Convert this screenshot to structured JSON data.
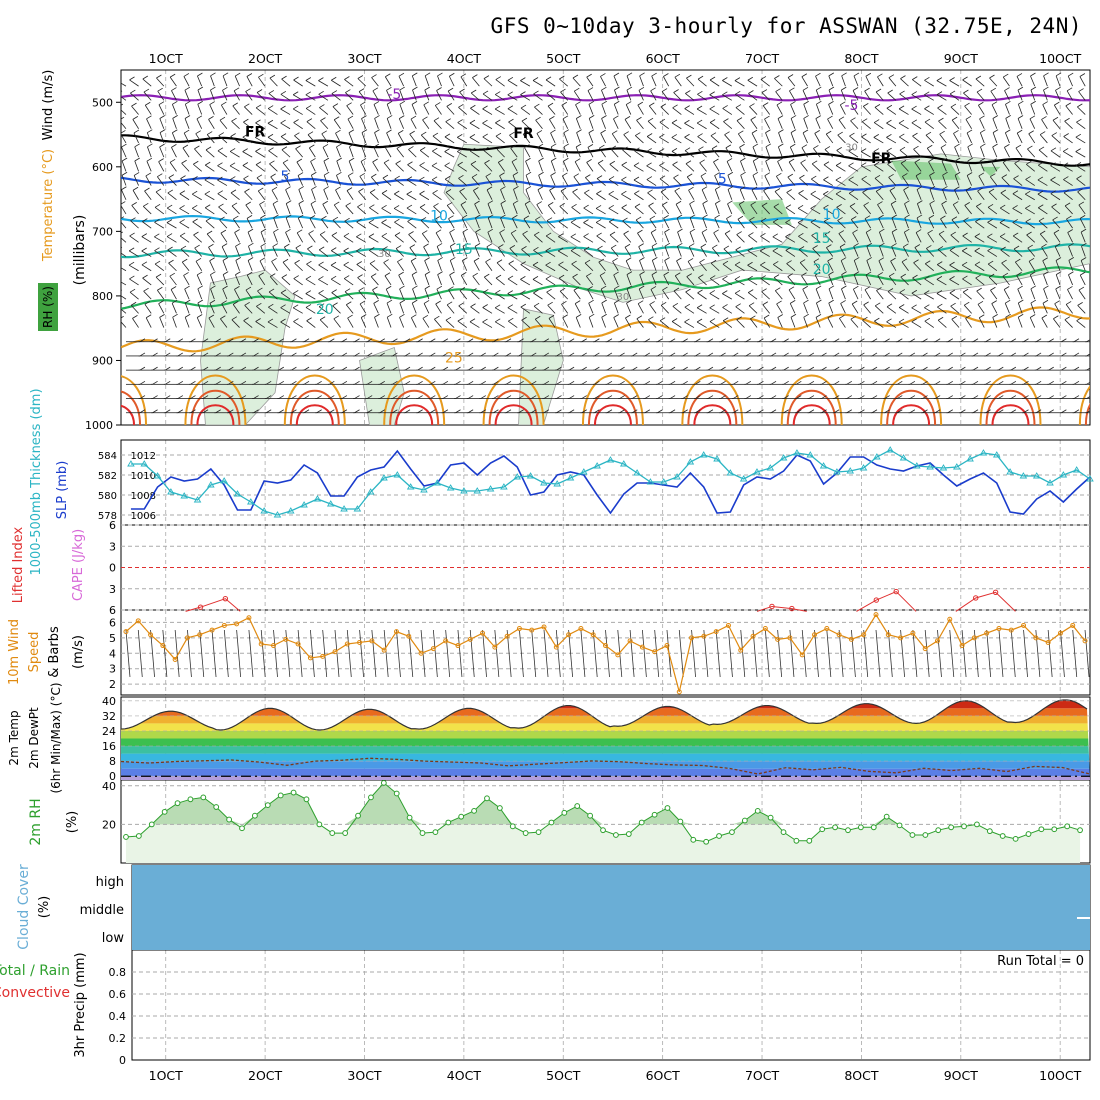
{
  "title": "GFS 0~10day 3-hourly for ASSWAN (32.75E, 24N)",
  "colors": {
    "purple": "#8a1fb4",
    "blue": "#1a52d6",
    "cyan": "#19a6e0",
    "teal": "#1fb3a6",
    "green": "#21b05a",
    "orange": "#e69a1e",
    "red": "#e02a2a",
    "magenta": "#d61e9a",
    "rhfill": "#dcefdc",
    "rhline": "#2ea02e",
    "cloud": "#6aaed6",
    "slp": "#1a3ccc",
    "thick": "#2bb5c4",
    "wind": "#e08a10",
    "cape": "#d86ad8",
    "li": "#e03030"
  },
  "chart_data": [
    {
      "type": "area",
      "panel": "upper-air",
      "ylabel": "(millibars)",
      "left_labels": [
        {
          "text": "Wind (m/s)",
          "color": "#000000"
        },
        {
          "text": "Temperature (°C)",
          "color": "#e69a1e"
        },
        {
          "text": "RH (%)",
          "color": "#2ea02e"
        }
      ],
      "y_ticks": [
        500,
        600,
        700,
        800,
        900,
        1000
      ],
      "ylim": [
        450,
        1000
      ],
      "x_ticks": [
        "1OCT",
        "2OCT",
        "3OCT",
        "4OCT",
        "5OCT",
        "6OCT",
        "7OCT",
        "8OCT",
        "9OCT",
        "10OCT"
      ],
      "x_day_range": [
        0.55,
        10.3
      ],
      "isotherm_labels": [
        {
          "text": "-5",
          "t": 3.3,
          "p": 495
        },
        {
          "text": "-5",
          "t": 7.9,
          "p": 512
        },
        {
          "text": "FR",
          "t": 1.9,
          "p": 553
        },
        {
          "text": "FR",
          "t": 4.6,
          "p": 555
        },
        {
          "text": "FR",
          "t": 8.2,
          "p": 594
        },
        {
          "text": "5",
          "t": 2.2,
          "p": 622
        },
        {
          "text": "5",
          "t": 6.6,
          "p": 626
        },
        {
          "text": "10",
          "t": 3.75,
          "p": 683
        },
        {
          "text": "10",
          "t": 7.7,
          "p": 681
        },
        {
          "text": "15",
          "t": 4.0,
          "p": 735
        },
        {
          "text": "15",
          "t": 7.6,
          "p": 718
        },
        {
          "text": "20",
          "t": 2.6,
          "p": 828
        },
        {
          "text": "20",
          "t": 7.6,
          "p": 766
        },
        {
          "text": "25",
          "t": 3.9,
          "p": 903
        },
        {
          "text": "30",
          "t": 3.2,
          "p": 740
        },
        {
          "text": "30",
          "t": 7.9,
          "p": 575
        },
        {
          "text": "30",
          "t": 5.6,
          "p": 806
        }
      ]
    },
    {
      "type": "line",
      "panel": "slp-thickness",
      "left_labels": [
        {
          "text": "1000-500mb Thickness (dm)",
          "color": "#2bb5c4"
        },
        {
          "text": "SLP (mb)",
          "color": "#1a3ccc"
        }
      ],
      "y_ticks_left": [
        578,
        580,
        582,
        584
      ],
      "y_ticks_right": [
        1006,
        1008,
        1010,
        1012
      ],
      "series": [
        {
          "name": "SLP (mb)",
          "values": [
            1006.6,
            1006.6,
            1008.8,
            1009.8,
            1009.4,
            1009.6,
            1010.6,
            1009.0,
            1006.5,
            1006.5,
            1009.4,
            1009.2,
            1009.5,
            1011.0,
            1010.2,
            1007.9,
            1007.9,
            1009.8,
            1010.5,
            1010.8,
            1012.4,
            1010.6,
            1008.9,
            1009.2,
            1011.0,
            1011.2,
            1010.0,
            1011.2,
            1011.9,
            1010.8,
            1008.0,
            1008.3,
            1010.0,
            1010.3,
            1010.0,
            1008.0,
            1006.2,
            1008.1,
            1009.2,
            1009.2,
            1009.0,
            1008.8,
            1010.2,
            1008.8,
            1006.2,
            1006.3,
            1009.0,
            1009.8,
            1009.6,
            1010.4,
            1012.0,
            1011.4,
            1009.1,
            1010.2,
            1011.8,
            1011.8,
            1011.0,
            1010.6,
            1010.4,
            1010.9,
            1011.2,
            1010.0,
            1008.9,
            1009.6,
            1010.2,
            1009.2,
            1006.3,
            1006.1,
            1007.6,
            1008.4,
            1007.3,
            1008.6,
            1009.8
          ]
        },
        {
          "name": "Thickness (dm)",
          "values": [
            583.1,
            583.1,
            581.9,
            580.3,
            579.9,
            579.5,
            581.0,
            581.4,
            580.1,
            579.3,
            578.4,
            578.0,
            578.4,
            579.0,
            579.6,
            579.1,
            578.6,
            578.6,
            580.3,
            581.7,
            582.0,
            580.8,
            580.5,
            581.2,
            580.7,
            580.4,
            580.4,
            580.6,
            580.8,
            581.8,
            581.9,
            581.2,
            581.1,
            581.7,
            582.3,
            582.9,
            583.5,
            583.1,
            582.2,
            581.3,
            581.3,
            581.8,
            583.3,
            584.0,
            583.6,
            582.2,
            581.6,
            582.3,
            582.7,
            583.7,
            584.2,
            584.0,
            582.9,
            582.3,
            582.4,
            582.7,
            583.8,
            584.5,
            583.7,
            582.9,
            582.8,
            582.7,
            582.8,
            583.6,
            584.2,
            584.0,
            582.3,
            581.9,
            581.9,
            581.2,
            582.0,
            582.5,
            581.6
          ]
        }
      ]
    },
    {
      "type": "line",
      "panel": "instability",
      "left_labels": [
        {
          "text": "Lifted Index",
          "color": "#e03030"
        },
        {
          "text": "CAPE (J/kg)",
          "color": "#d86ad8"
        }
      ],
      "y_ticks": [
        -6,
        -3,
        0,
        3,
        6
      ],
      "ylim": [
        -6,
        6
      ],
      "y_tick_labels": [
        "6",
        "3",
        "0",
        "3",
        "6"
      ],
      "series": [
        {
          "name": "Lifted Index",
          "segments": [
            {
              "t": [
                1.2,
                1.35,
                1.6,
                1.75
              ],
              "v": [
                6.2,
                5.6,
                4.4,
                6.2
              ]
            },
            {
              "t": [
                6.95,
                7.1,
                7.3,
                7.45
              ],
              "v": [
                6.2,
                5.5,
                5.8,
                6.2
              ]
            },
            {
              "t": [
                7.95,
                8.15,
                8.35,
                8.55
              ],
              "v": [
                6.2,
                4.6,
                3.4,
                6.2
              ]
            },
            {
              "t": [
                8.95,
                9.15,
                9.35,
                9.55
              ],
              "v": [
                6.2,
                4.3,
                3.5,
                6.2
              ]
            }
          ]
        }
      ]
    },
    {
      "type": "line",
      "panel": "wind",
      "left_labels": [
        {
          "text": "10m Wind",
          "color": "#e08a10"
        },
        {
          "text": "Speed",
          "color": "#e08a10"
        },
        {
          "text": "& Barbs",
          "color": "#000000"
        },
        {
          "text": "(m/s)",
          "color": "#000000"
        }
      ],
      "y_ticks": [
        2,
        3,
        4,
        5,
        6
      ],
      "ylim": [
        1.3,
        6.8
      ],
      "series": [
        {
          "name": "10m Wind Speed (m/s)",
          "values": [
            5.4,
            6.1,
            5.2,
            4.5,
            3.6,
            5.0,
            5.2,
            5.5,
            5.8,
            5.9,
            6.3,
            4.6,
            4.5,
            4.9,
            4.6,
            3.7,
            3.8,
            4.1,
            4.6,
            4.7,
            4.8,
            4.2,
            5.4,
            5.1,
            4.0,
            4.3,
            4.8,
            4.5,
            4.9,
            5.3,
            4.4,
            5.1,
            5.6,
            5.5,
            5.7,
            4.4,
            5.2,
            5.6,
            5.2,
            4.5,
            3.9,
            4.8,
            4.4,
            4.1,
            4.5,
            1.5,
            5.0,
            5.1,
            5.4,
            5.8,
            4.2,
            5.1,
            5.6,
            4.9,
            5.0,
            3.9,
            5.2,
            5.6,
            5.2,
            4.9,
            5.2,
            6.5,
            5.2,
            5.0,
            5.3,
            4.3,
            4.8,
            6.2,
            4.5,
            5.0,
            5.3,
            5.6,
            5.5,
            5.8,
            5.0,
            4.7,
            5.3,
            5.8,
            4.8
          ]
        }
      ]
    },
    {
      "type": "area",
      "panel": "temperature",
      "left_labels": [
        {
          "text": "2m Temp",
          "color": "#000000"
        },
        {
          "text": "2m DewPt",
          "color": "#000000"
        },
        {
          "text": "(6hr Min/Max) (°C)",
          "color": "#000000"
        }
      ],
      "y_ticks": [
        0,
        8,
        16,
        24,
        32,
        40
      ],
      "ylim": [
        -2,
        42
      ],
      "series": [
        {
          "name": "2m Temp (°C)",
          "day_max": [
            34.5,
            36.0,
            35.5,
            36.0,
            37.5,
            37.0,
            37.5,
            38.5,
            40.0,
            40.5
          ],
          "day_min": [
            25.0,
            24.5,
            24.5,
            25.0,
            25.5,
            26.5,
            27.5,
            28.0,
            28.0,
            28.5
          ]
        },
        {
          "name": "2m DewPt (°C)",
          "values": [
            7.8,
            7.0,
            7.8,
            8.2,
            8.6,
            7.5,
            5.8,
            8.0,
            8.5,
            9.5,
            8.9,
            8.0,
            7.5,
            7.0,
            5.5,
            6.4,
            7.2,
            8.1,
            7.7,
            6.7,
            6.0,
            5.7,
            4.1,
            1.2,
            4.5,
            3.4,
            4.7,
            2.6,
            1.8,
            4.2,
            3.0,
            4.2,
            2.5,
            5.2,
            4.6,
            1.2
          ]
        }
      ]
    },
    {
      "type": "area",
      "panel": "relative-humidity",
      "left_labels": [
        {
          "text": "2m RH",
          "color": "#2ea02e"
        },
        {
          "text": "(%)",
          "color": "#000000"
        }
      ],
      "y_ticks": [
        20,
        40
      ],
      "ylim": [
        0,
        43
      ],
      "series": [
        {
          "name": "2m RH (%)",
          "values": [
            13.5,
            14.0,
            20.0,
            26.5,
            31.0,
            33.0,
            34.0,
            29.0,
            22.5,
            18.0,
            24.5,
            30.0,
            35.0,
            36.5,
            33.0,
            20.0,
            15.5,
            15.5,
            24.5,
            34.0,
            41.5,
            36.0,
            23.5,
            15.5,
            16.0,
            21.0,
            24.0,
            27.0,
            33.5,
            28.5,
            19.0,
            15.5,
            16.0,
            21.0,
            26.0,
            29.5,
            24.5,
            17.0,
            14.5,
            15.0,
            21.0,
            25.0,
            28.5,
            21.5,
            12.0,
            11.0,
            14.0,
            16.0,
            22.0,
            27.0,
            23.5,
            16.0,
            11.5,
            11.5,
            17.5,
            18.5,
            17.0,
            18.5,
            18.5,
            24.0,
            19.5,
            14.5,
            14.5,
            17.0,
            18.5,
            19.0,
            20.0,
            16.5,
            14.0,
            12.5,
            15.0,
            17.5,
            17.5,
            19.0,
            17.0
          ]
        }
      ]
    },
    {
      "type": "area",
      "panel": "cloud-cover",
      "left_labels": [
        {
          "text": "Cloud Cover",
          "color": "#6aaed6"
        },
        {
          "text": "(%)",
          "color": "#000000"
        }
      ],
      "levels": [
        "high",
        "middle",
        "low"
      ],
      "series": [
        {
          "name": "high",
          "values": [
            0
          ]
        },
        {
          "name": "middle",
          "values": [
            0
          ]
        },
        {
          "name": "low",
          "values": [
            0
          ]
        }
      ]
    },
    {
      "type": "bar",
      "panel": "precipitation",
      "left_labels": [
        {
          "text": "Total / Rain",
          "color": "#2ea02e"
        },
        {
          "text": "Convective",
          "color": "#e03030"
        },
        {
          "text": "3hr Precip (mm)",
          "color": "#000000"
        }
      ],
      "y_ticks": [
        0,
        0.2,
        0.4,
        0.6,
        0.8
      ],
      "ylim": [
        0,
        1.0
      ],
      "annotation": "Run Total = 0",
      "values": []
    }
  ]
}
